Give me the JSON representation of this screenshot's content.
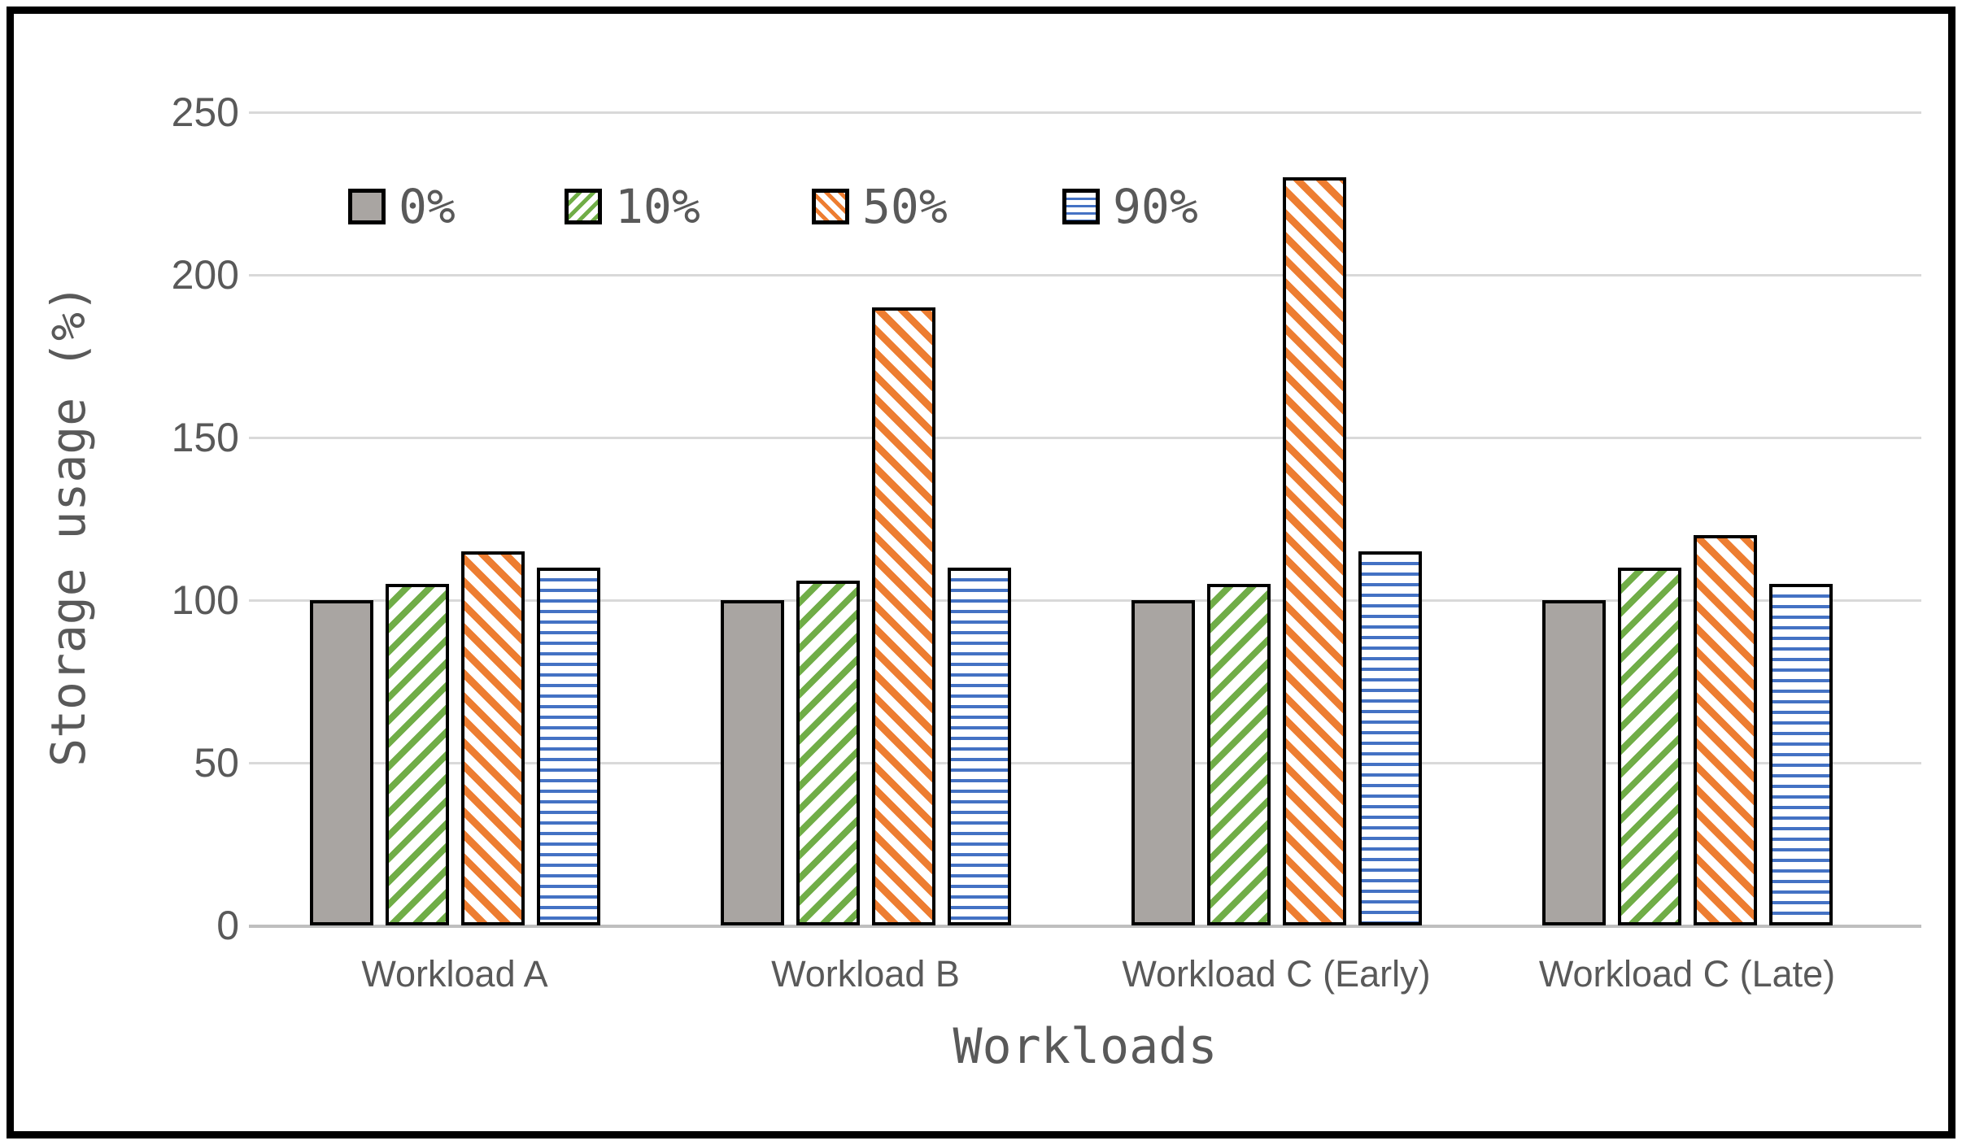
{
  "chart_data": {
    "type": "bar",
    "title": "",
    "xlabel": "Workloads",
    "ylabel": "Storage usage (%)",
    "categories": [
      "Workload A",
      "Workload B",
      "Workload C (Early)",
      "Workload C (Late)"
    ],
    "series": [
      {
        "name": "0%",
        "pattern": "solid",
        "color": "#a9a5a2",
        "values": [
          100,
          100,
          100,
          100
        ]
      },
      {
        "name": "10%",
        "pattern": "diagonal-up",
        "color": "#70ad47",
        "values": [
          105,
          106,
          105,
          110
        ]
      },
      {
        "name": "50%",
        "pattern": "diagonal-down",
        "color": "#ed7d31",
        "values": [
          115,
          190,
          230,
          120
        ]
      },
      {
        "name": "90%",
        "pattern": "horizontal-lines",
        "color": "#4472c4",
        "values": [
          110,
          110,
          115,
          105
        ]
      }
    ],
    "ylim": [
      0,
      250
    ],
    "yticks": [
      0,
      50,
      100,
      150,
      200,
      250
    ],
    "grid": true,
    "legend_position": "top-left-inside",
    "gridline_color": "#d9d9d9",
    "axis_line_color": "#bfbfbf",
    "text_color": "#595959",
    "bar_border_color": "#000000"
  }
}
